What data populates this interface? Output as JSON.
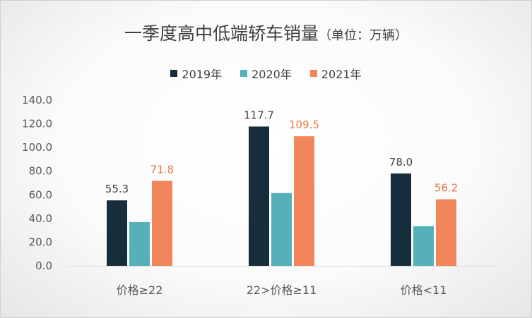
{
  "chart_data": {
    "type": "bar",
    "title": "一季度高中低端轿车销量",
    "title_unit": "（单位：万辆）",
    "categories": [
      "价格≥22",
      "22>价格≥11",
      "价格<11"
    ],
    "series": [
      {
        "name": "2019年",
        "color": "#172d3b",
        "values": [
          55.3,
          117.7,
          78.0
        ],
        "labels": [
          "55.3",
          "117.7",
          "78.0"
        ],
        "label_color": "#404040"
      },
      {
        "name": "2020年",
        "color": "#56b0ba",
        "values": [
          37,
          61.5,
          33.5
        ],
        "labels": [
          null,
          null,
          null
        ],
        "label_color": "#404040"
      },
      {
        "name": "2021年",
        "color": "#f0865a",
        "values": [
          71.8,
          109.5,
          56.2
        ],
        "labels": [
          "71.8",
          "109.5",
          "56.2"
        ],
        "label_color": "#e8793f"
      }
    ],
    "yticks": [
      "0.0",
      "20.0",
      "40.0",
      "60.0",
      "80.0",
      "100.0",
      "120.0",
      "140.0"
    ],
    "ylim": [
      0,
      140
    ],
    "grid": false,
    "legend_position": "top"
  }
}
